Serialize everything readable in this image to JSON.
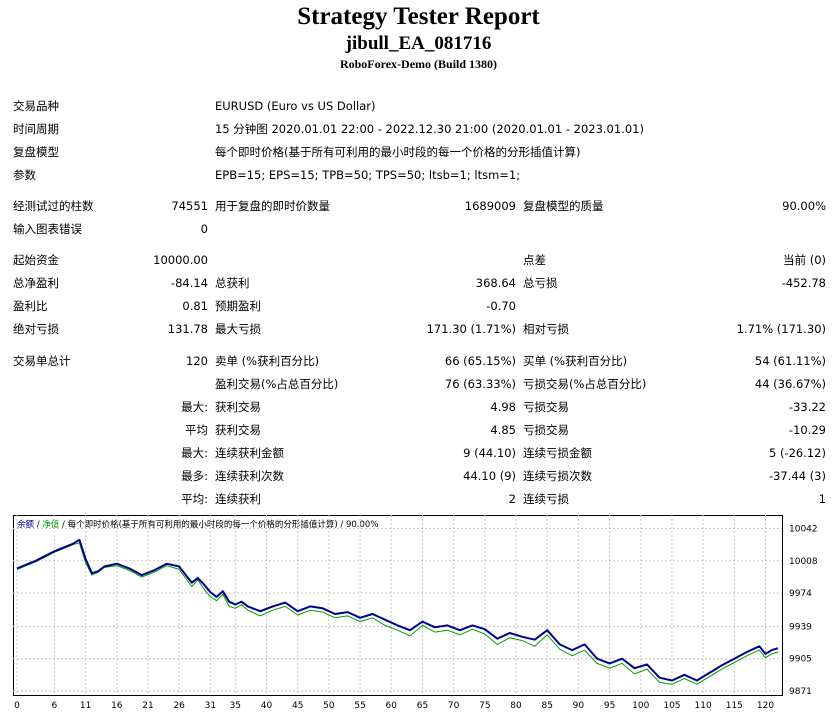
{
  "header": {
    "title": "Strategy Tester Report",
    "ea_name": "jibull_EA_081716",
    "server": "RoboForex-Demo (Build 1380)"
  },
  "info": [
    {
      "label": "交易品种",
      "value": "EURUSD (Euro vs US Dollar)"
    },
    {
      "label": "时间周期",
      "value": "15 分钟图 2020.01.01 22:00 - 2022.12.30 21:00 (2020.01.01 - 2023.01.01)"
    },
    {
      "label": "复盘模型",
      "value": "每个即时价格(基于所有可利用的最小时段的每一个价格的分形插值计算)"
    },
    {
      "label": "参数",
      "value": "EPB=15; EPS=15; TPB=50; TPS=50; ltsb=1; ltsm=1;"
    }
  ],
  "bars": {
    "label": "经测试过的柱数",
    "value": "74551",
    "ticks_label": "用于复盘的即时价数量",
    "ticks_value": "1689009",
    "quality_label": "复盘模型的质量",
    "quality_value": "90.00%"
  },
  "errors": {
    "label": "输入图表错误",
    "value": "0"
  },
  "stats": {
    "initial_deposit_label": "起始资金",
    "initial_deposit": "10000.00",
    "spread_label": "点差",
    "spread": "当前 (0)",
    "net_profit_label": "总净盈利",
    "net_profit": "-84.14",
    "gross_profit_label": "总获利",
    "gross_profit": "368.64",
    "gross_loss_label": "总亏损",
    "gross_loss": "-452.78",
    "profit_factor_label": "盈利比",
    "profit_factor": "0.81",
    "expected_payoff_label": "预期盈利",
    "expected_payoff": "-0.70",
    "abs_dd_label": "绝对亏损",
    "abs_dd": "131.78",
    "max_dd_label": "最大亏损",
    "max_dd": "171.30 (1.71%)",
    "rel_dd_label": "相对亏损",
    "rel_dd": "1.71% (171.30)",
    "total_trades_label": "交易单总计",
    "total_trades": "120",
    "short_label": "卖单 (%获利百分比)",
    "short": "66 (65.15%)",
    "long_label": "买单 (%获利百分比)",
    "long": "54 (61.11%)",
    "profit_trades_label": "盈利交易(%占总百分比)",
    "profit_trades": "76 (63.33%)",
    "loss_trades_label": "亏损交易(%占总百分比)",
    "loss_trades": "44 (36.67%)",
    "largest_prefix": "最大:",
    "largest_profit_label": "获利交易",
    "largest_profit": "4.98",
    "largest_loss_label": "亏损交易",
    "largest_loss": "-33.22",
    "average_prefix": "平均",
    "avg_profit_label": "获利交易",
    "avg_profit": "4.85",
    "avg_loss_label": "亏损交易",
    "avg_loss": "-10.29",
    "max_consec_prefix": "最大:",
    "max_consec_wins_label": "连续获利金额",
    "max_consec_wins": "9 (44.10)",
    "max_consec_losses_label": "连续亏损金额",
    "max_consec_losses": "5 (-26.12)",
    "maximal_prefix": "最多:",
    "maximal_consec_profit_label": "连续获利次数",
    "maximal_consec_profit": "44.10 (9)",
    "maximal_consec_loss_label": "连续亏损次数",
    "maximal_consec_loss": "-37.44 (3)",
    "avg_consec_prefix": "平均:",
    "avg_consec_wins_label": "连续获利",
    "avg_consec_wins": "2",
    "avg_consec_losses_label": "连续亏损",
    "avg_consec_losses": "1"
  },
  "chart_data": {
    "type": "line",
    "legend": {
      "balance": "余额",
      "sep": " / ",
      "equity": "净值",
      "rest": " / 每个即时价格(基于所有可利用的最小时段的每一个价格的分形插值计算) / 90.00%"
    },
    "x_ticks": [
      0,
      6,
      11,
      16,
      21,
      26,
      31,
      35,
      40,
      45,
      50,
      55,
      60,
      65,
      70,
      75,
      80,
      85,
      90,
      95,
      100,
      105,
      110,
      115,
      120
    ],
    "y_ticks": [
      10042,
      10008,
      9974,
      9939,
      9905,
      9871
    ],
    "xlim": [
      0,
      122
    ],
    "ylim": [
      9871,
      10052
    ],
    "colors": {
      "balance": "#00008b",
      "equity": "#00a000"
    },
    "series": [
      {
        "key": "balance",
        "x": [
          0,
          3,
          6,
          9,
          10,
          11,
          12,
          13,
          14,
          16,
          18,
          20,
          22,
          24,
          26,
          28,
          29,
          30,
          31,
          32,
          33,
          34,
          35,
          36,
          37,
          39,
          41,
          43,
          45,
          47,
          49,
          51,
          53,
          55,
          57,
          59,
          61,
          63,
          65,
          67,
          69,
          71,
          73,
          75,
          77,
          79,
          81,
          83,
          85,
          87,
          89,
          91,
          93,
          95,
          97,
          99,
          101,
          103,
          105,
          107,
          109,
          111,
          113,
          115,
          117,
          119,
          120,
          121,
          122
        ],
        "y": [
          10000,
          10008,
          10018,
          10026,
          10030,
          10010,
          9995,
          9997,
          10002,
          10005,
          10000,
          9993,
          9998,
          10005,
          10002,
          9985,
          9990,
          9983,
          9975,
          9970,
          9976,
          9965,
          9962,
          9965,
          9960,
          9955,
          9960,
          9964,
          9955,
          9960,
          9958,
          9952,
          9954,
          9948,
          9952,
          9946,
          9940,
          9935,
          9944,
          9938,
          9940,
          9935,
          9940,
          9936,
          9926,
          9932,
          9928,
          9925,
          9935,
          9920,
          9914,
          9920,
          9905,
          9900,
          9905,
          9895,
          9899,
          9885,
          9882,
          9888,
          9882,
          9890,
          9898,
          9905,
          9912,
          9918,
          9910,
          9914,
          9916
        ]
      },
      {
        "key": "equity",
        "x": [
          0,
          3,
          6,
          9,
          10,
          11,
          12,
          13,
          14,
          16,
          18,
          20,
          22,
          24,
          26,
          28,
          29,
          30,
          31,
          32,
          33,
          34,
          35,
          36,
          37,
          39,
          41,
          43,
          45,
          47,
          49,
          51,
          53,
          55,
          57,
          59,
          61,
          63,
          65,
          67,
          69,
          71,
          73,
          75,
          77,
          79,
          81,
          83,
          85,
          87,
          89,
          91,
          93,
          95,
          97,
          99,
          101,
          103,
          105,
          107,
          109,
          111,
          113,
          115,
          117,
          119,
          120,
          121,
          122
        ],
        "y": [
          9999,
          10007,
          10017,
          10025,
          10027,
          10006,
          9993,
          9996,
          10001,
          10003,
          9998,
          9991,
          9996,
          10003,
          9999,
          9981,
          9988,
          9978,
          9970,
          9966,
          9973,
          9960,
          9958,
          9962,
          9956,
          9950,
          9956,
          9960,
          9951,
          9956,
          9954,
          9948,
          9950,
          9944,
          9948,
          9940,
          9935,
          9929,
          9940,
          9933,
          9935,
          9930,
          9936,
          9931,
          9920,
          9927,
          9924,
          9918,
          9930,
          9915,
          9908,
          9914,
          9900,
          9895,
          9900,
          9889,
          9894,
          9880,
          9878,
          9884,
          9878,
          9886,
          9894,
          9901,
          9908,
          9914,
          9906,
          9910,
          9912
        ]
      }
    ]
  }
}
